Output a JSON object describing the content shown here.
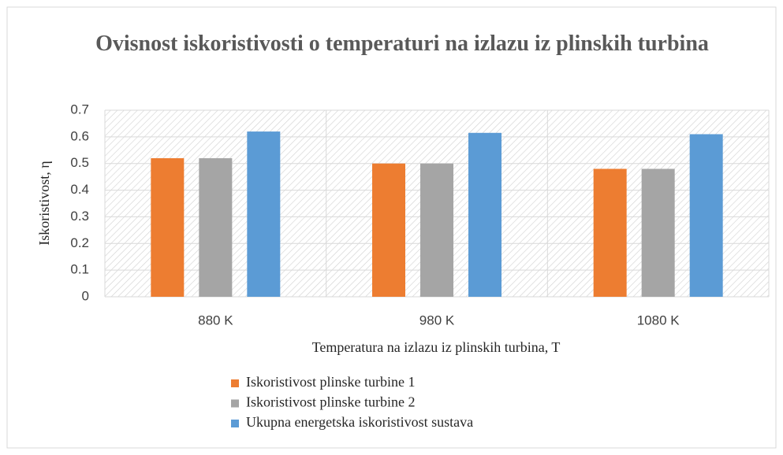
{
  "chart_data": {
    "type": "bar",
    "title": "Ovisnost iskoristivosti o temperaturi na izlazu iz plinskih turbina",
    "x_label": "Temperatura na izlazu iz plinskih turbina, T",
    "y_label": "Iskoristivost, η",
    "categories": [
      "880 K",
      "980 K",
      "1080 K"
    ],
    "series": [
      {
        "name": "Iskoristivost plinske turbine 1",
        "color": "#ed7d31",
        "values": [
          0.52,
          0.5,
          0.48
        ]
      },
      {
        "name": "Iskoristivost plinske turbine 2",
        "color": "#a5a5a5",
        "values": [
          0.52,
          0.5,
          0.48
        ]
      },
      {
        "name": "Ukupna energetska iskoristivost sustava",
        "color": "#5b9bd5",
        "values": [
          0.62,
          0.615,
          0.61
        ]
      }
    ],
    "ylim": [
      0,
      0.7
    ],
    "yticks": [
      0,
      0.1,
      0.2,
      0.3,
      0.4,
      0.5,
      0.6,
      0.7
    ],
    "grid": true,
    "legend": "bottom"
  }
}
